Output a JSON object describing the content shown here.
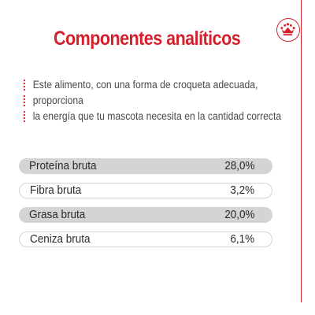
{
  "header": {
    "title": "Componentes analíticos",
    "logo_icon": "royal-crown-icon"
  },
  "intro": {
    "lines": [
      "Este alimento, con una forma de croqueta adecuada,",
      "proporciona",
      "la energía que tu mascota necesita en la cantidad correcta"
    ]
  },
  "components": [
    {
      "label": "Proteína bruta",
      "value": "28,0%",
      "style": "shaded"
    },
    {
      "label": "Fibra bruta",
      "value": "3,2%",
      "style": "outlined"
    },
    {
      "label": "Grasa bruta",
      "value": "20,0%",
      "style": "shaded"
    },
    {
      "label": "Ceniza bruta",
      "value": "6,1%",
      "style": "outlined"
    }
  ],
  "colors": {
    "accent": "#d3202d",
    "row_fill": "#d4d4d4",
    "text": "#2b2b2b",
    "intro_text": "#4a4a4a",
    "background": "#ffffff"
  }
}
